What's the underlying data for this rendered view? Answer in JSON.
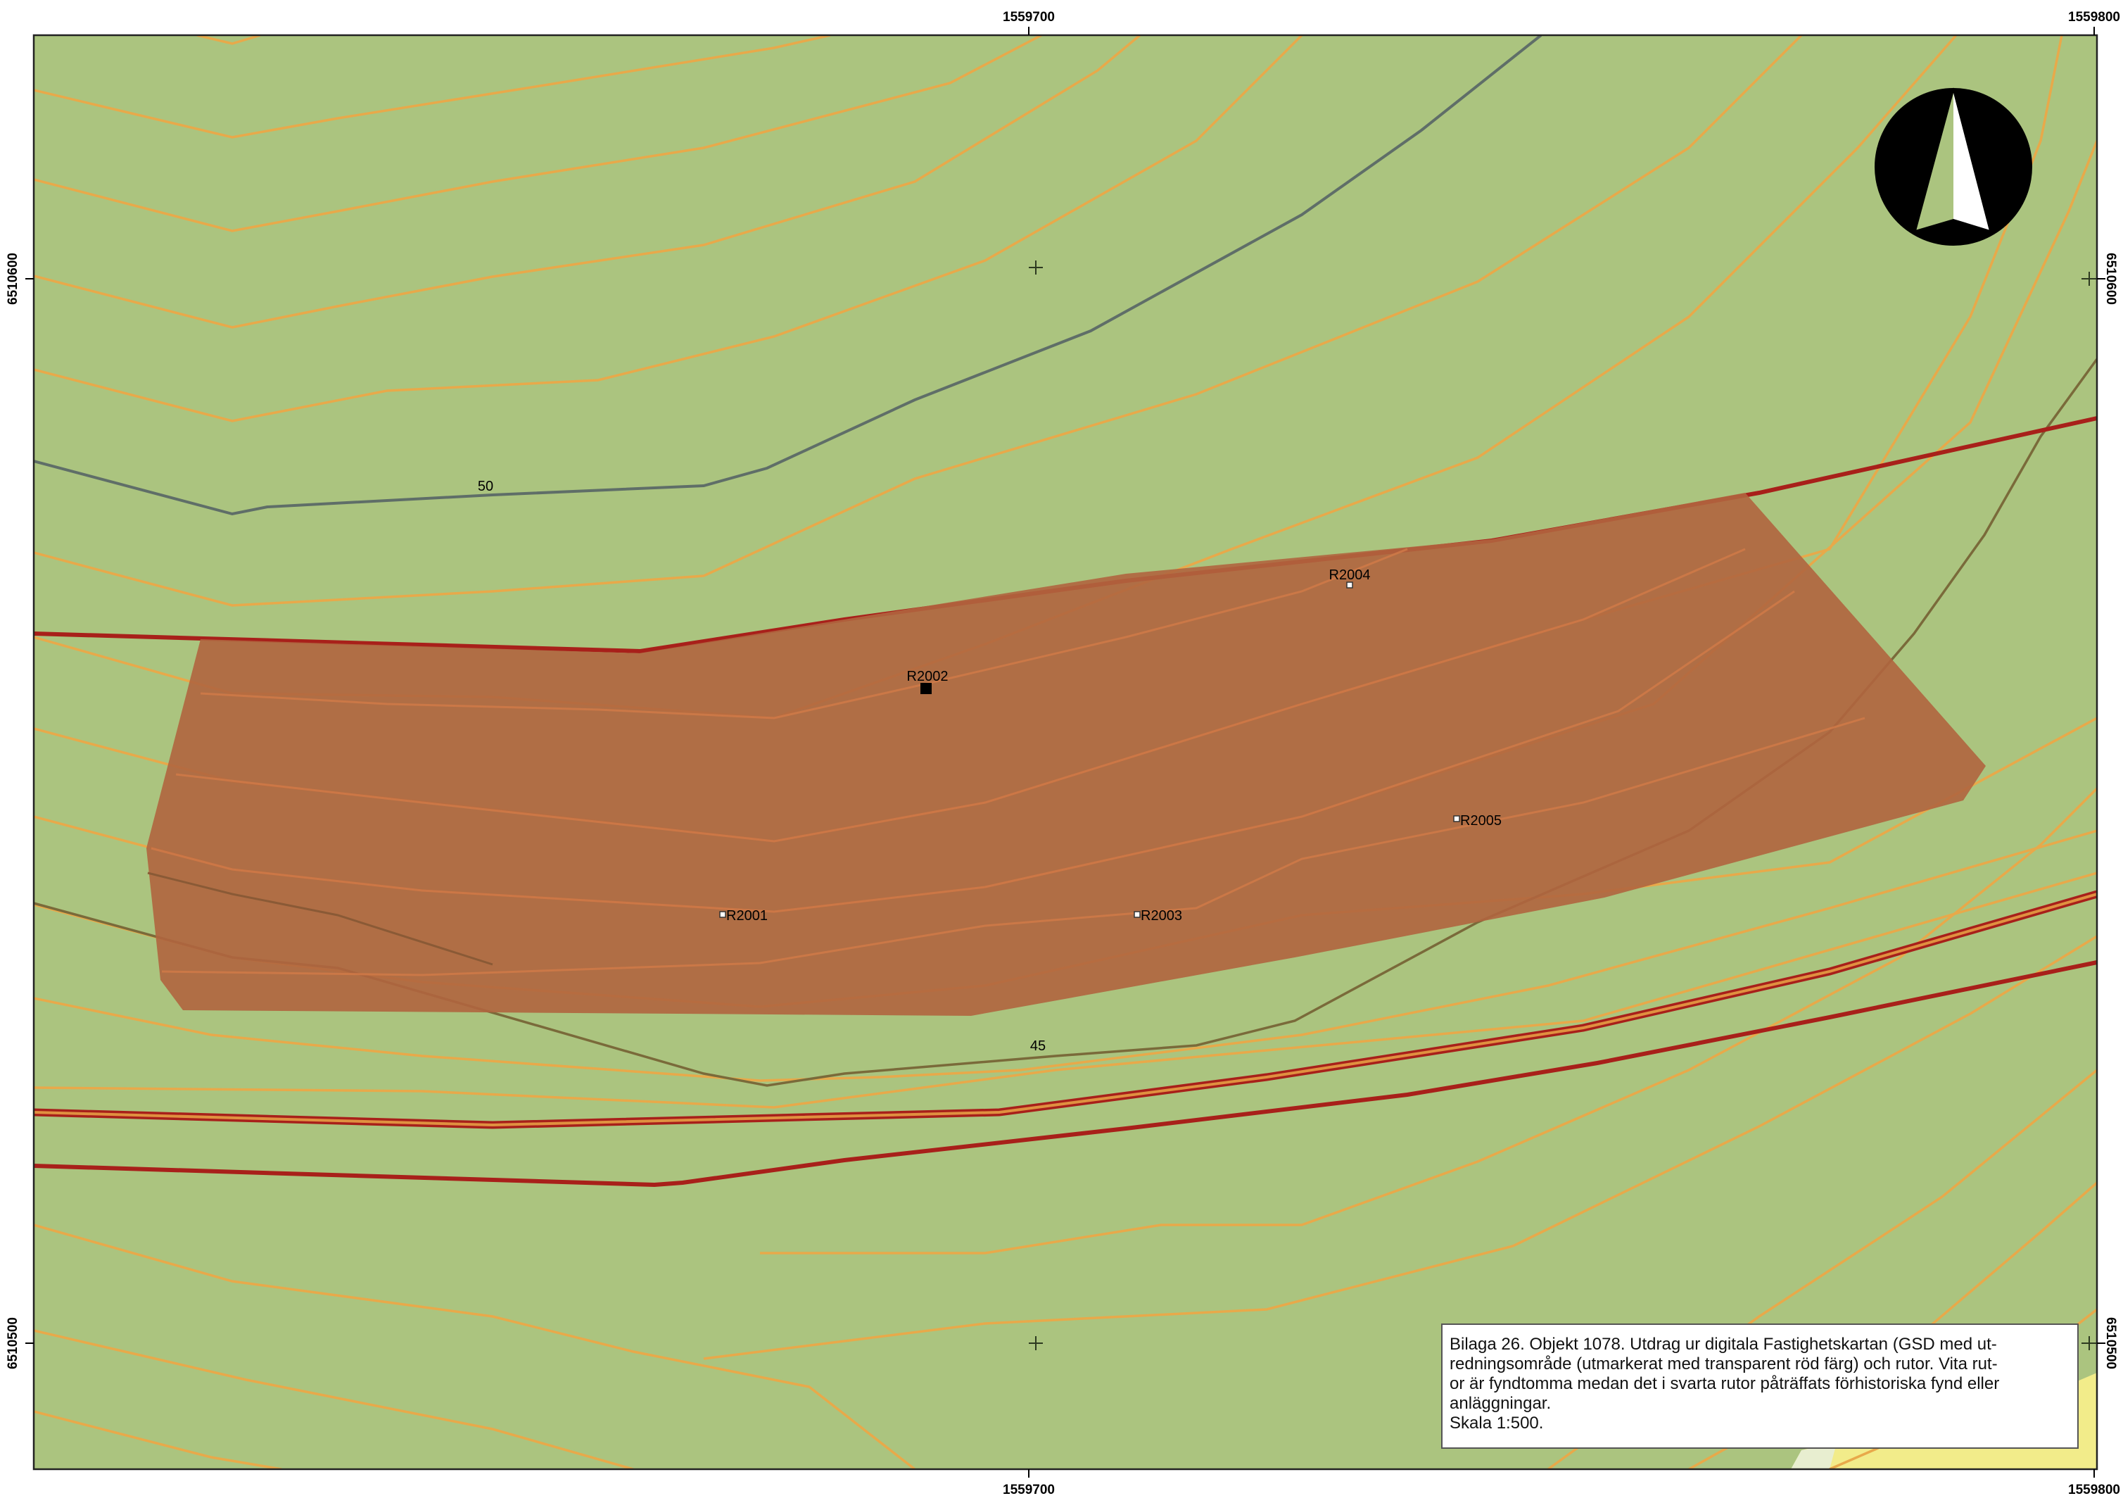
{
  "map": {
    "colors": {
      "background": "#abc47f",
      "contour_minor": "#e8a94a",
      "contour_major": "#5f6e68",
      "contour_major_lower": "#7a6a3a",
      "road_border": "#a8201a",
      "road_fill": "#e09040",
      "study_area": "#b0653f",
      "corner_yellow": "#f2ec8a"
    },
    "grid_labels": {
      "top": [
        "1559700",
        "1559800"
      ],
      "bottom": [
        "1559700",
        "1559800"
      ],
      "left": [
        "6510600",
        "6510500"
      ],
      "right": [
        "6510600",
        "6510500"
      ]
    },
    "contour_labels": [
      "50",
      "45"
    ],
    "squares": [
      {
        "id": "R2001",
        "finds": false
      },
      {
        "id": "R2002",
        "finds": true
      },
      {
        "id": "R2003",
        "finds": false
      },
      {
        "id": "R2004",
        "finds": false
      },
      {
        "id": "R2005",
        "finds": false
      }
    ],
    "north_arrow_icon": "north-arrow-icon"
  },
  "caption": {
    "lines": [
      "Bilaga 26. Objekt 1078. Utdrag ur digitala Fastighetskartan (GSD med ut-",
      "redningsområde (utmarkerat med transparent röd färg) och rutor.  Vita rut-",
      "or är fyndtomma medan det i svarta rutor påträffats förhistoriska fynd eller",
      "anläggningar.",
      "Skala 1:500."
    ]
  }
}
